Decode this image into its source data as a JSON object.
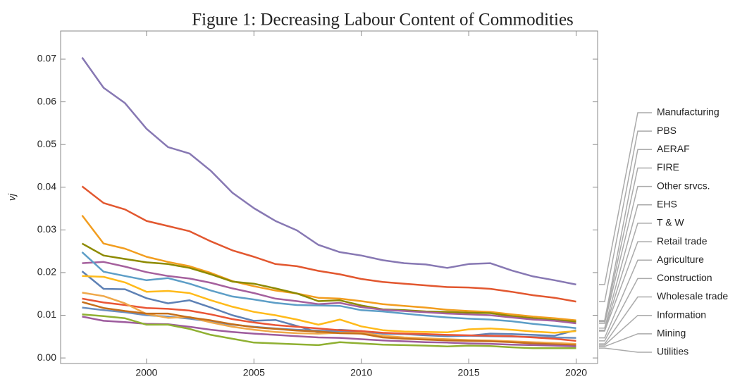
{
  "chart_data": {
    "type": "line",
    "title": "Figure 1: Decreasing Labour Content of Commodities",
    "y_label": "vj",
    "x": [
      1997,
      1998,
      1999,
      2000,
      2001,
      2002,
      2003,
      2004,
      2005,
      2006,
      2007,
      2008,
      2009,
      2010,
      2011,
      2012,
      2013,
      2014,
      2015,
      2016,
      2017,
      2018,
      2019,
      2020
    ],
    "xlim": [
      1996,
      2021
    ],
    "xticks": [
      2000,
      2005,
      2010,
      2015,
      2020
    ],
    "ylim": [
      -0.0013,
      0.0766
    ],
    "yticks": [
      {
        "value": 0,
        "label": "0.00"
      },
      {
        "value": 0.01,
        "label": "0.01"
      },
      {
        "value": 0.02,
        "label": "0.02"
      },
      {
        "value": 0.03,
        "label": "0.03"
      },
      {
        "value": 0.04,
        "label": "0.04"
      },
      {
        "value": 0.05,
        "label": "0.05"
      },
      {
        "value": 0.06,
        "label": "0.06"
      },
      {
        "value": 0.07,
        "label": "0.07"
      }
    ],
    "series": [
      {
        "name": "Manufacturing",
        "color": "#8778B3",
        "values": [
          0.0704,
          0.0633,
          0.0597,
          0.0537,
          0.0494,
          0.0479,
          0.0438,
          0.0387,
          0.0351,
          0.0321,
          0.0299,
          0.0265,
          0.0248,
          0.024,
          0.0229,
          0.0222,
          0.0219,
          0.0211,
          0.022,
          0.0222,
          0.0205,
          0.0191,
          0.0182,
          0.0172
        ]
      },
      {
        "name": "PBS",
        "color": "#E2572F",
        "values": [
          0.0402,
          0.0363,
          0.0348,
          0.0321,
          0.0309,
          0.0297,
          0.0273,
          0.0252,
          0.0237,
          0.022,
          0.0215,
          0.0204,
          0.0196,
          0.0185,
          0.0178,
          0.0174,
          0.017,
          0.0166,
          0.0165,
          0.0162,
          0.0155,
          0.0147,
          0.0141,
          0.0132
        ]
      },
      {
        "name": "AERAF",
        "color": "#F29D1E",
        "values": [
          0.0334,
          0.0268,
          0.0256,
          0.0237,
          0.0225,
          0.0215,
          0.0199,
          0.018,
          0.0168,
          0.0158,
          0.0151,
          0.0141,
          0.0139,
          0.0133,
          0.0126,
          0.0122,
          0.0118,
          0.0113,
          0.011,
          0.0108,
          0.0102,
          0.0097,
          0.0093,
          0.0088
        ]
      },
      {
        "name": "FIRE",
        "color": "#8D8A00",
        "values": [
          0.0268,
          0.024,
          0.0232,
          0.0224,
          0.022,
          0.0211,
          0.0196,
          0.0179,
          0.0174,
          0.0163,
          0.0151,
          0.0133,
          0.0135,
          0.0123,
          0.0114,
          0.0112,
          0.0109,
          0.0108,
          0.0106,
          0.0105,
          0.0098,
          0.0093,
          0.0089,
          0.0085
        ]
      },
      {
        "name": "Other srvcs.",
        "color": "#A5609D",
        "values": [
          0.0222,
          0.0225,
          0.0214,
          0.0201,
          0.0192,
          0.0186,
          0.0176,
          0.0163,
          0.0152,
          0.0139,
          0.0133,
          0.0126,
          0.0129,
          0.0119,
          0.0113,
          0.011,
          0.0107,
          0.0104,
          0.0102,
          0.01,
          0.0095,
          0.009,
          0.0087,
          0.0081
        ]
      },
      {
        "name": "EHS",
        "color": "#5D9EC7",
        "values": [
          0.0248,
          0.0202,
          0.0192,
          0.0182,
          0.0187,
          0.0174,
          0.0158,
          0.0144,
          0.0137,
          0.0129,
          0.0124,
          0.0123,
          0.0122,
          0.0112,
          0.0109,
          0.0104,
          0.0099,
          0.0095,
          0.0092,
          0.009,
          0.0086,
          0.008,
          0.0075,
          0.007
        ]
      },
      {
        "name": "T & W",
        "color": "#5E81B5",
        "values": [
          0.0203,
          0.0162,
          0.0161,
          0.014,
          0.0128,
          0.0135,
          0.0118,
          0.01,
          0.0087,
          0.0089,
          0.0075,
          0.006,
          0.0066,
          0.0063,
          0.0057,
          0.0056,
          0.0053,
          0.0051,
          0.0052,
          0.0057,
          0.0056,
          0.0054,
          0.0052,
          0.0065
        ]
      },
      {
        "name": "Retail trade",
        "color": "#FFBA1A",
        "values": [
          0.0192,
          0.019,
          0.0177,
          0.0155,
          0.0157,
          0.0152,
          0.0135,
          0.012,
          0.0108,
          0.01,
          0.009,
          0.0078,
          0.009,
          0.0074,
          0.0065,
          0.0062,
          0.0061,
          0.006,
          0.0067,
          0.0069,
          0.0066,
          0.0062,
          0.0059,
          0.0063
        ]
      },
      {
        "name": "Agriculture",
        "color": "#6B8FBF",
        "values": [
          0.0118,
          0.0112,
          0.0107,
          0.01,
          0.0097,
          0.0092,
          0.0085,
          0.0078,
          0.0073,
          0.0069,
          0.0066,
          0.0064,
          0.0062,
          0.006,
          0.0058,
          0.0056,
          0.0055,
          0.0053,
          0.0052,
          0.0051,
          0.005,
          0.0049,
          0.0048,
          0.0047
        ]
      },
      {
        "name": "Construction",
        "color": "#E95536",
        "values": [
          0.0139,
          0.013,
          0.0124,
          0.0117,
          0.0115,
          0.0111,
          0.0102,
          0.0091,
          0.0083,
          0.0077,
          0.0073,
          0.0069,
          0.0065,
          0.0063,
          0.0059,
          0.0057,
          0.0056,
          0.0054,
          0.0053,
          0.0052,
          0.0051,
          0.0048,
          0.0045,
          0.004
        ]
      },
      {
        "name": "Wholesale trade",
        "color": "#EFA84A",
        "values": [
          0.0153,
          0.0145,
          0.0128,
          0.0103,
          0.0094,
          0.0096,
          0.0083,
          0.0073,
          0.0066,
          0.0061,
          0.0058,
          0.0057,
          0.0059,
          0.0059,
          0.0052,
          0.0048,
          0.0046,
          0.0044,
          0.0042,
          0.0041,
          0.0039,
          0.0037,
          0.0035,
          0.0033
        ]
      },
      {
        "name": "Information",
        "color": "#C56E1A",
        "values": [
          0.0131,
          0.0117,
          0.011,
          0.0104,
          0.0104,
          0.0095,
          0.0088,
          0.0079,
          0.0072,
          0.0068,
          0.0064,
          0.0062,
          0.0058,
          0.0057,
          0.0048,
          0.0045,
          0.0043,
          0.0041,
          0.004,
          0.0039,
          0.0037,
          0.0034,
          0.0032,
          0.003
        ]
      },
      {
        "name": "Mining",
        "color": "#9D5B9D",
        "values": [
          0.0097,
          0.0087,
          0.0084,
          0.008,
          0.0079,
          0.0073,
          0.0066,
          0.0061,
          0.0057,
          0.0054,
          0.0051,
          0.0048,
          0.0047,
          0.0044,
          0.0041,
          0.0039,
          0.0037,
          0.0036,
          0.0034,
          0.0033,
          0.0031,
          0.003,
          0.0029,
          0.0027
        ]
      },
      {
        "name": "Utilities",
        "color": "#8FB032",
        "values": [
          0.0102,
          0.0098,
          0.0093,
          0.0078,
          0.0078,
          0.0068,
          0.0054,
          0.0045,
          0.0036,
          0.0034,
          0.0032,
          0.003,
          0.0037,
          0.0034,
          0.0031,
          0.003,
          0.0029,
          0.0027,
          0.0029,
          0.0028,
          0.0025,
          0.0023,
          0.0023,
          0.0023
        ]
      }
    ]
  }
}
